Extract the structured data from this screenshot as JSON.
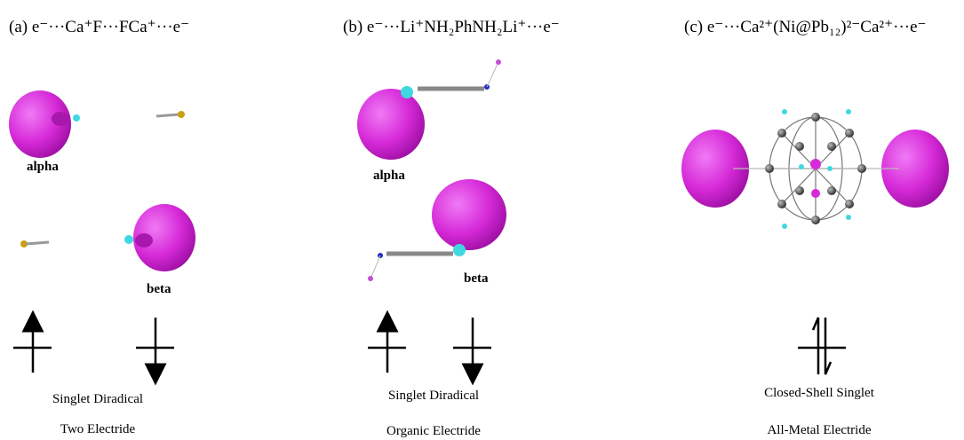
{
  "panels": [
    {
      "title": "(a) e⁻···Ca⁺F···FCa⁺···e⁻",
      "labels": [
        "alpha",
        "beta"
      ],
      "captions": [
        "Singlet Diradical",
        "Two Electride"
      ]
    },
    {
      "title": "(b) e⁻···Li⁺NH₂PhNH₂Li⁺···e⁻",
      "labels": [
        "alpha",
        "beta"
      ],
      "captions": [
        "Singlet Diradical",
        "Organic Electride"
      ]
    },
    {
      "title": "(c) e⁻···Ca²⁺(Ni@Pb₁₂)²⁻Ca²⁺···e⁻",
      "captions": [
        "Closed-Shell Singlet",
        "All-Metal Electride"
      ]
    }
  ]
}
